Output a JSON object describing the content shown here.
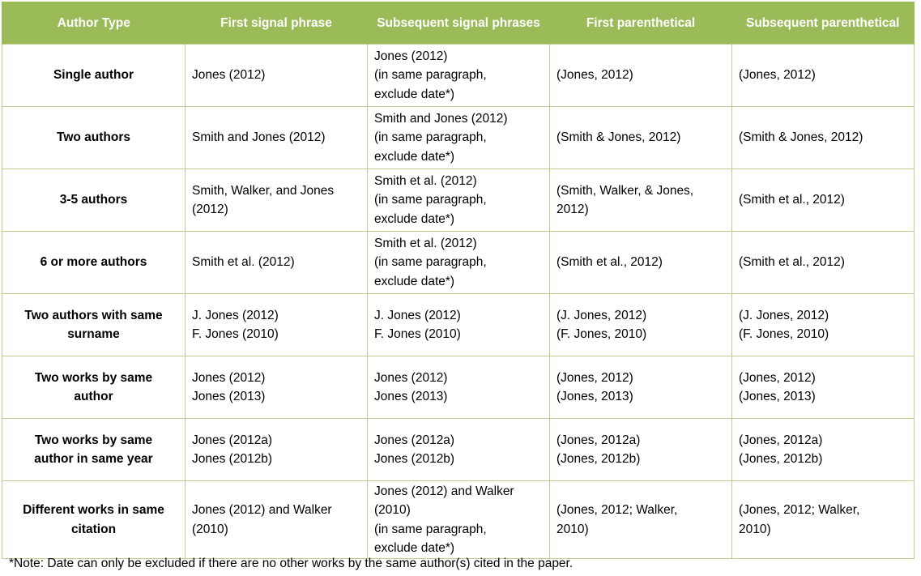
{
  "headers": [
    "Author Type",
    "First signal phrase",
    "Subsequent signal phrases",
    "First parenthetical",
    "Subsequent parenthetical"
  ],
  "rows": [
    {
      "author_type": "Single author",
      "first_signal": "Jones (2012)",
      "subsequent_signal": "Jones (2012)\n(in same paragraph,\nexclude date*)",
      "first_parenthetical": "(Jones, 2012)",
      "subsequent_parenthetical": "(Jones, 2012)"
    },
    {
      "author_type": "Two authors",
      "first_signal": "Smith and Jones (2012)",
      "subsequent_signal": "Smith and Jones (2012)\n(in same paragraph,\nexclude date*)",
      "first_parenthetical": "(Smith & Jones, 2012)",
      "subsequent_parenthetical": "(Smith & Jones, 2012)"
    },
    {
      "author_type": "3-5 authors",
      "first_signal": "Smith, Walker, and Jones\n(2012)",
      "subsequent_signal": "Smith et al. (2012)\n(in same paragraph,\nexclude date*)",
      "first_parenthetical": "(Smith, Walker, & Jones,\n2012)",
      "subsequent_parenthetical": "(Smith et al., 2012)"
    },
    {
      "author_type": "6 or more authors",
      "first_signal": "Smith et al. (2012)",
      "subsequent_signal": "Smith et al. (2012)\n(in same paragraph,\nexclude date*)",
      "first_parenthetical": "(Smith et al., 2012)",
      "subsequent_parenthetical": "(Smith et al., 2012)"
    },
    {
      "author_type": "Two authors with same\nsurname",
      "first_signal": "J. Jones (2012)\nF. Jones (2010)",
      "subsequent_signal": "J. Jones (2012)\nF. Jones (2010)",
      "first_parenthetical": "(J. Jones, 2012)\n(F. Jones, 2010)",
      "subsequent_parenthetical": "(J. Jones, 2012)\n(F. Jones, 2010)"
    },
    {
      "author_type": "Two works by same\nauthor",
      "first_signal": "Jones (2012)\nJones (2013)",
      "subsequent_signal": "Jones (2012)\nJones (2013)",
      "first_parenthetical": "(Jones, 2012)\n(Jones, 2013)",
      "subsequent_parenthetical": "(Jones, 2012)\n(Jones, 2013)"
    },
    {
      "author_type": "Two works by same\nauthor in same year",
      "first_signal": "Jones (2012a)\nJones (2012b)",
      "subsequent_signal": "Jones (2012a)\nJones (2012b)",
      "first_parenthetical": "(Jones, 2012a)\n(Jones, 2012b)",
      "subsequent_parenthetical": "(Jones, 2012a)\n(Jones, 2012b)"
    },
    {
      "author_type": "Different works in same\ncitation",
      "first_signal": "Jones (2012) and Walker\n(2010)",
      "subsequent_signal": "Jones (2012) and Walker\n(2010)\n(in same paragraph,\nexclude date*)",
      "first_parenthetical": "(Jones, 2012; Walker,\n2010)",
      "subsequent_parenthetical": "(Jones, 2012; Walker,\n2010)"
    }
  ],
  "note": "*Note: Date can only be excluded if there are no other works by the same author(s) cited in the paper.",
  "colors": {
    "header_bg": "#9bbb59",
    "header_text": "#ffffff",
    "border": "#b9cf8e"
  }
}
